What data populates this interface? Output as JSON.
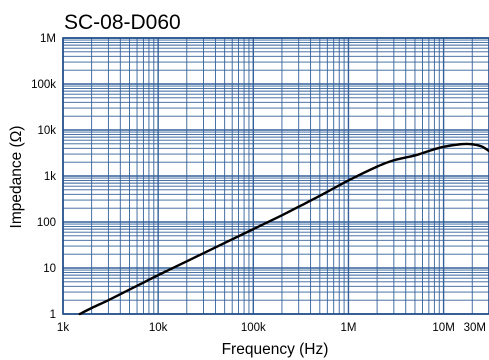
{
  "chart_data": {
    "type": "line",
    "title": "SC-08-D060",
    "xlabel": "Frequency (Hz)",
    "ylabel": "Impedance (Ω)",
    "x_scale": "log",
    "y_scale": "log",
    "xlim": [
      1000,
      30000000
    ],
    "ylim": [
      1,
      1000000
    ],
    "grid": true,
    "x_ticks": [
      {
        "value": 1000,
        "label": "1k"
      },
      {
        "value": 10000,
        "label": "10k"
      },
      {
        "value": 100000,
        "label": "100k"
      },
      {
        "value": 1000000,
        "label": "1M"
      },
      {
        "value": 10000000,
        "label": "10M"
      },
      {
        "value": 30000000,
        "label": "30M"
      }
    ],
    "y_ticks": [
      {
        "value": 1,
        "label": "1"
      },
      {
        "value": 10,
        "label": "10"
      },
      {
        "value": 100,
        "label": "100"
      },
      {
        "value": 1000,
        "label": "1k"
      },
      {
        "value": 10000,
        "label": "10k"
      },
      {
        "value": 100000,
        "label": "100k"
      },
      {
        "value": 1000000,
        "label": "1M"
      }
    ],
    "series": [
      {
        "color": "#000000",
        "x": [
          1500,
          2000,
          3000,
          5000,
          7000,
          10000,
          20000,
          30000,
          50000,
          100000,
          200000,
          300000,
          500000,
          1000000,
          2000000,
          3000000,
          5000000,
          7000000,
          10000000,
          15000000,
          20000000,
          25000000,
          30000000
        ],
        "y": [
          1.0,
          1.35,
          2.0,
          3.4,
          4.8,
          7.0,
          14.0,
          21.0,
          35.0,
          70.0,
          140.0,
          215.0,
          370.0,
          800.0,
          1600.0,
          2200.0,
          2800.0,
          3500.0,
          4300.0,
          4900.0,
          4900.0,
          4400.0,
          3500.0
        ]
      }
    ],
    "colors": {
      "grid": "#33609a",
      "frame": "#1f4c88",
      "curve": "#000000"
    }
  }
}
